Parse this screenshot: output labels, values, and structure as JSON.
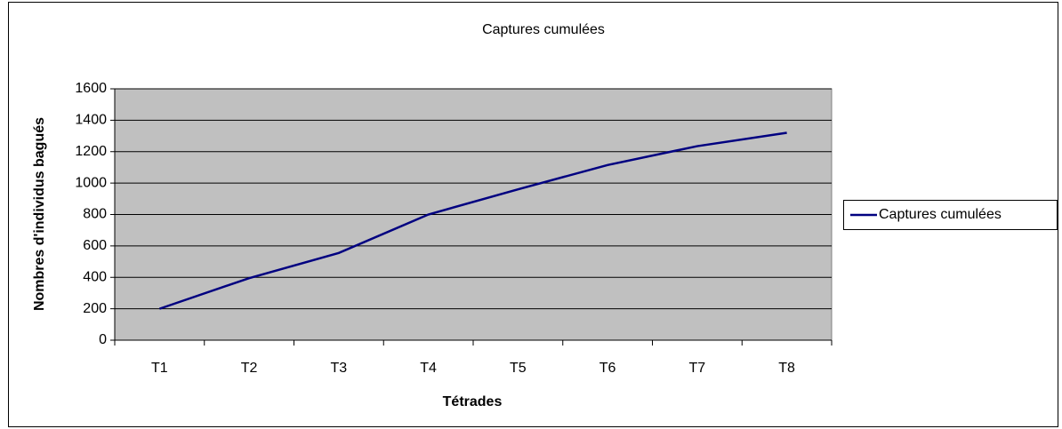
{
  "chart_data": {
    "type": "line",
    "title": "Captures cumulées",
    "x_label": "Tétrades",
    "y_label": "Nombres d'individus bagués",
    "categories": [
      "T1",
      "T2",
      "T3",
      "T4",
      "T5",
      "T6",
      "T7",
      "T8"
    ],
    "series": [
      {
        "name": "Captures cumulées",
        "color": "#000080",
        "values": [
          200,
          395,
          555,
          800,
          960,
          1115,
          1235,
          1320
        ]
      }
    ],
    "ylim": [
      0,
      1600
    ],
    "yticks": [
      0,
      200,
      400,
      600,
      800,
      1000,
      1200,
      1400,
      1600
    ],
    "grid": true,
    "legend": "right",
    "plot_background": "#c0c0c0"
  }
}
